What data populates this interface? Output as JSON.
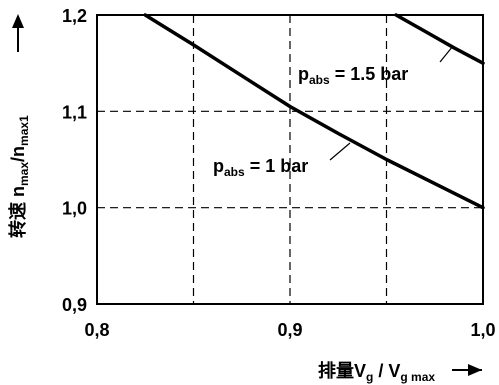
{
  "chart_data": {
    "type": "line",
    "x_axis": {
      "label_main": "排量V",
      "label_sub_1": "g",
      "label_mid": " / V",
      "label_sub_2": "g max",
      "ticks": [
        "0,8",
        "0,9",
        "1,0"
      ],
      "tick_values": [
        0.8,
        0.9,
        1.0
      ],
      "range": [
        0.8,
        1.0
      ],
      "dashed_grid": [
        0.85,
        0.9,
        0.95
      ]
    },
    "y_axis": {
      "label_main": "转速 n",
      "label_sub_1": "max",
      "label_mid": "/n",
      "label_sub_2": "max1",
      "ticks": [
        "0,9",
        "1,0",
        "1,1",
        "1,2"
      ],
      "tick_values": [
        0.9,
        1.0,
        1.1,
        1.2
      ],
      "range": [
        0.9,
        1.2
      ],
      "dashed_grid": [
        1.1
      ]
    },
    "series": [
      {
        "name_prefix": "p",
        "name_sub": "abs",
        "name_suffix": " = 1 bar",
        "x": [
          0.825,
          0.85,
          0.875,
          0.9,
          0.925,
          0.95,
          0.975,
          1.0
        ],
        "y": [
          1.2,
          1.169,
          1.137,
          1.105,
          1.077,
          1.05,
          1.025,
          1.0
        ]
      },
      {
        "name_prefix": "p",
        "name_sub": "abs",
        "name_suffix": " = 1.5 bar",
        "x": [
          0.955,
          0.97,
          0.985,
          1.0
        ],
        "y": [
          1.2,
          1.183,
          1.166,
          1.15
        ]
      }
    ],
    "grid": true,
    "legend": "inline labels"
  }
}
